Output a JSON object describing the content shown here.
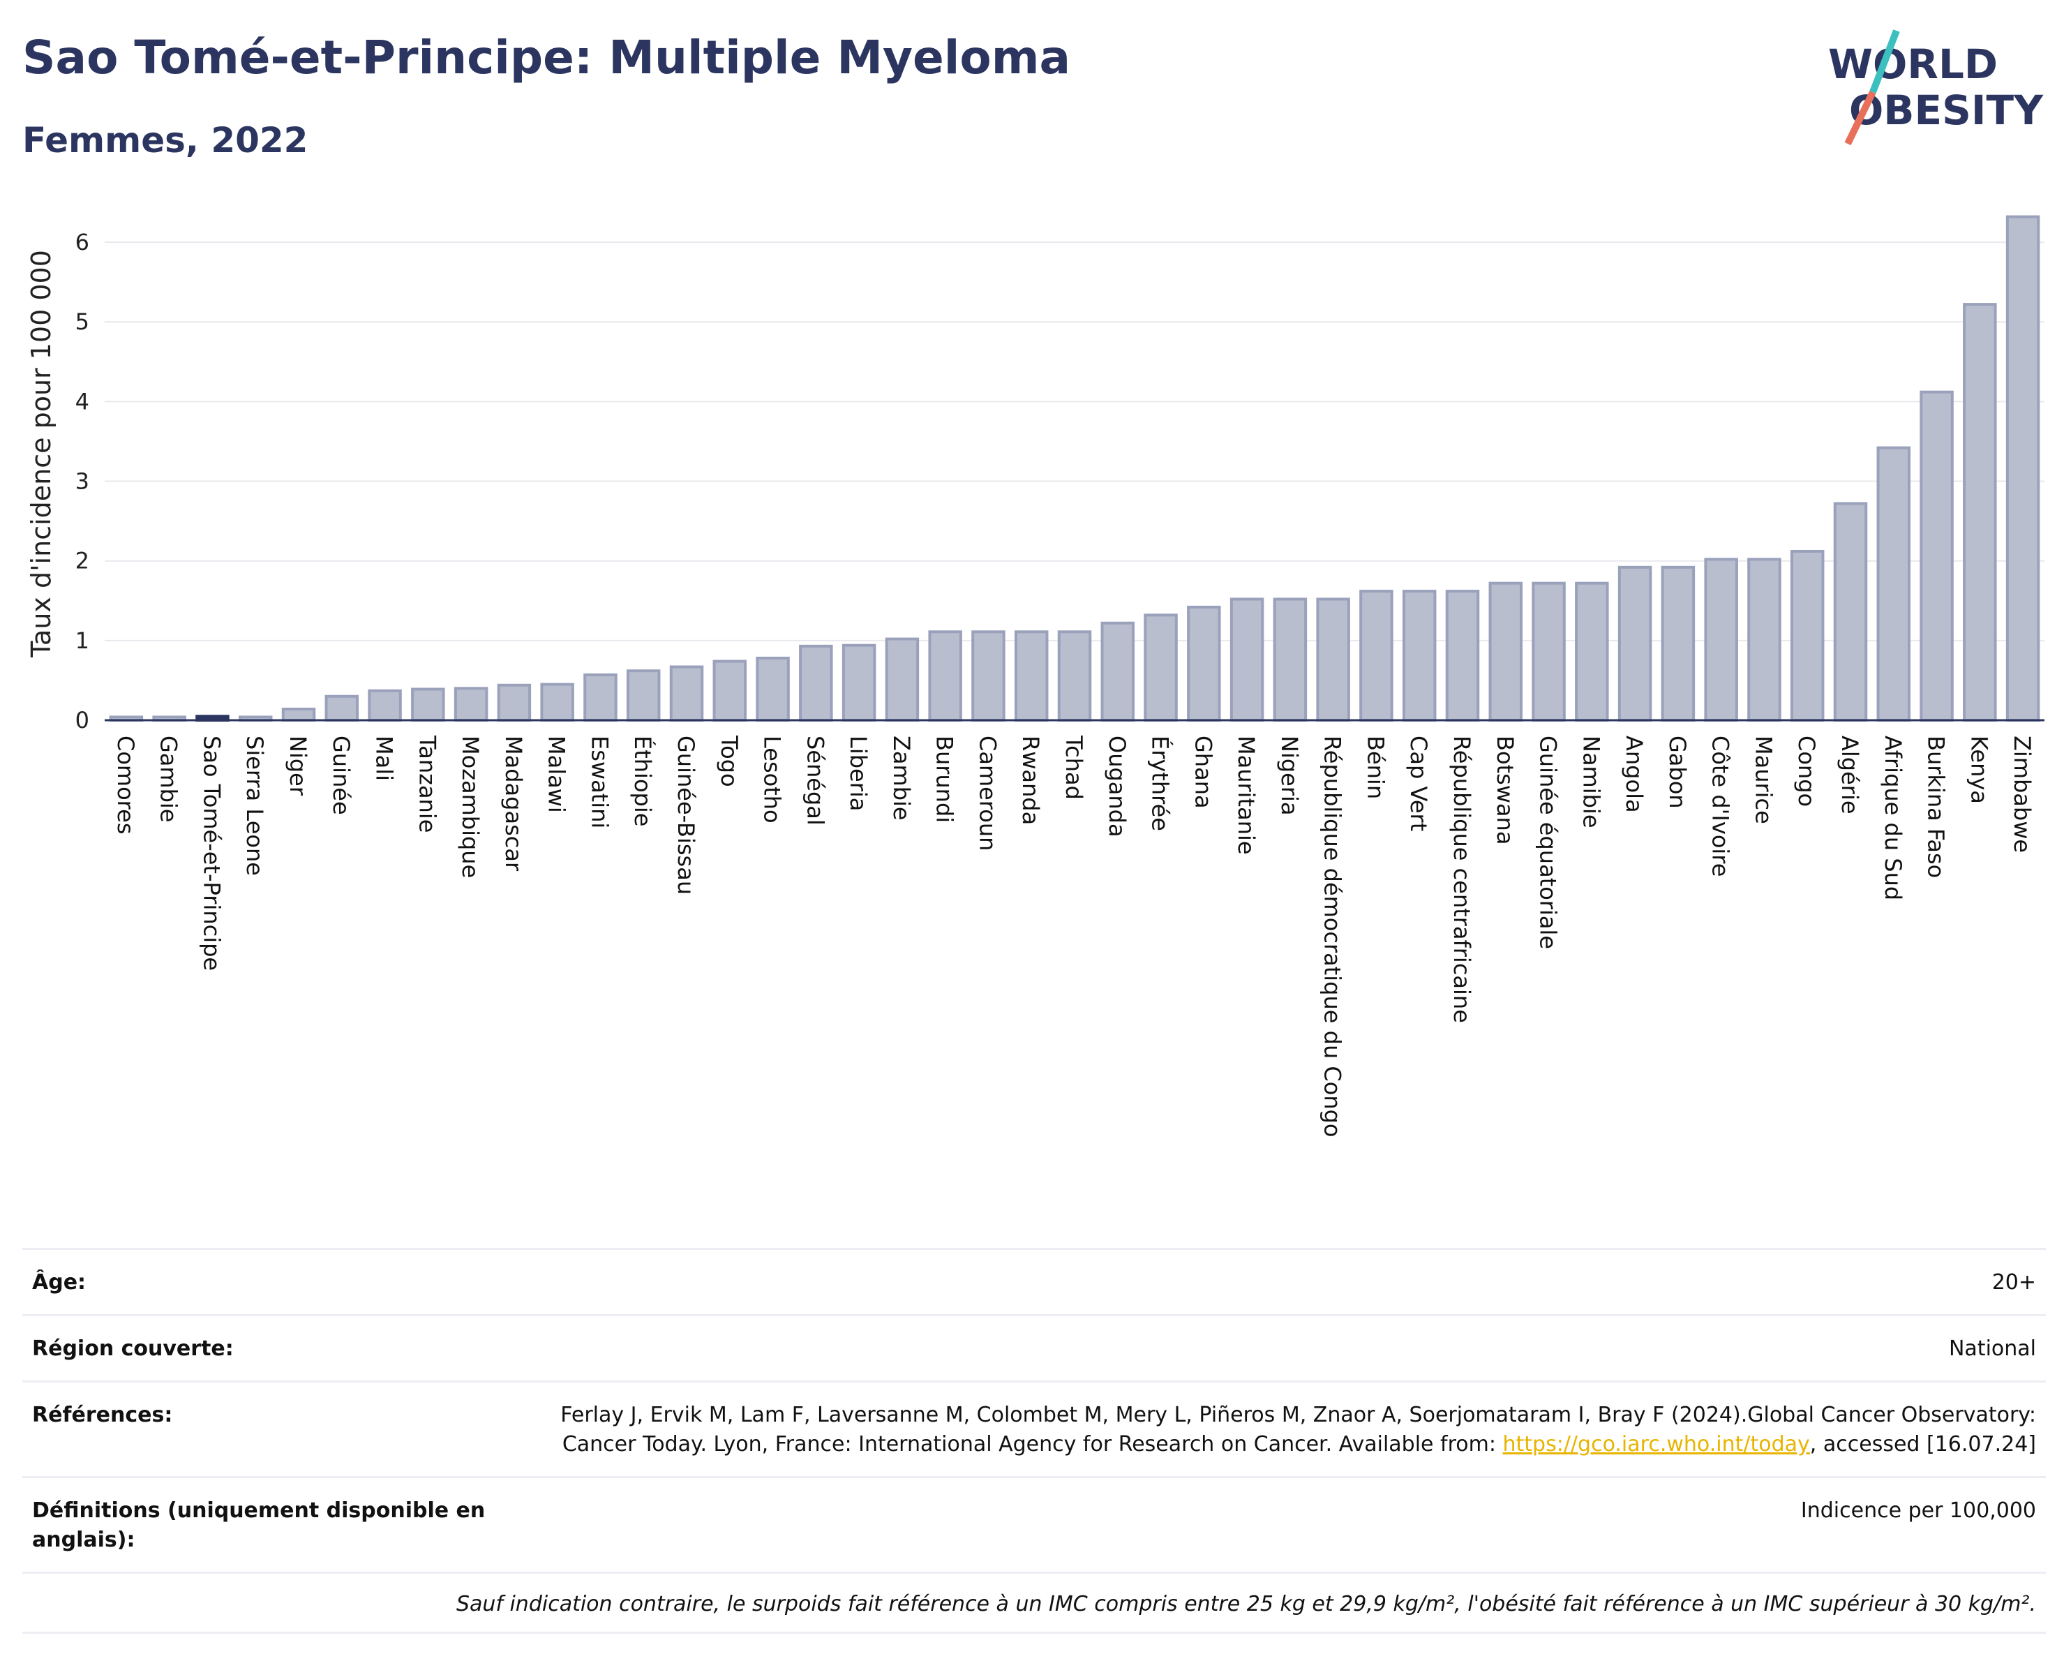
{
  "header": {
    "title": "Sao Tomé-et-Principe: Multiple Myeloma",
    "subtitle": "Femmes, 2022"
  },
  "logo": {
    "line1": "WORLD",
    "line2": "OBESITY",
    "icon": "world-obesity-logo"
  },
  "colors": {
    "bar": "#b9bece",
    "bar_stroke": "#9aa1bb",
    "highlight": "#2b3560",
    "title": "#2b3560",
    "grid": "#e8e8ee"
  },
  "chart_data": {
    "type": "bar",
    "ylabel": "Taux d'incidence pour 100 000",
    "ylim": [
      0,
      6.5
    ],
    "yticks": [
      0,
      1,
      2,
      3,
      4,
      5,
      6
    ],
    "grid": true,
    "highlight": "Sao Tomé-et-Principe",
    "categories": [
      "Comores",
      "Gambie",
      "Sao Tomé-et-Principe",
      "Sierra Leone",
      "Niger",
      "Guinée",
      "Mali",
      "Tanzanie",
      "Mozambique",
      "Madagascar",
      "Malawi",
      "Eswatini",
      "Éthiopie",
      "Guinée-Bissau",
      "Togo",
      "Lesotho",
      "Sénégal",
      "Liberia",
      "Zambie",
      "Burundi",
      "Cameroun",
      "Rwanda",
      "Tchad",
      "Ouganda",
      "Érythrée",
      "Ghana",
      "Mauritanie",
      "Nigeria",
      "République démocratique du Congo",
      "Bénin",
      "Cap Vert",
      "République centrafricaine",
      "Botswana",
      "Guinée équatoriale",
      "Namibie",
      "Angola",
      "Gabon",
      "Côte d'Ivoire",
      "Maurice",
      "Congo",
      "Algérie",
      "Afrique du Sud",
      "Burkina Faso",
      "Kenya",
      "Zimbabwe"
    ],
    "values": [
      0.04,
      0.04,
      0.05,
      0.04,
      0.14,
      0.3,
      0.37,
      0.39,
      0.4,
      0.44,
      0.45,
      0.57,
      0.62,
      0.67,
      0.74,
      0.78,
      0.93,
      0.94,
      1.02,
      1.11,
      1.11,
      1.11,
      1.11,
      1.22,
      1.32,
      1.42,
      1.52,
      1.52,
      1.52,
      1.62,
      1.62,
      1.62,
      1.72,
      1.72,
      1.72,
      1.92,
      1.92,
      2.02,
      2.02,
      2.12,
      2.72,
      3.42,
      4.12,
      5.22,
      6.32
    ]
  },
  "meta": {
    "age_label": "Âge:",
    "age_value": "20+",
    "region_label": "Région couverte:",
    "region_value": "National",
    "refs_label": "Références:",
    "refs_text": "Ferlay J, Ervik M, Lam F, Laversanne M, Colombet M, Mery L, Piñeros M, Znaor A, Soerjomataram I, Bray F (2024).Global Cancer Observatory: Cancer Today. Lyon, France: International Agency for Research on Cancer. Available from: ",
    "refs_link": "https://gco.iarc.who.int/today",
    "refs_tail": ", accessed [16.07.24]",
    "defs_label": "Définitions (uniquement disponible en anglais):",
    "defs_value": "Indicence per 100,000",
    "footnote": "Sauf indication contraire, le surpoids fait référence à un IMC compris entre 25 kg et 29,9 kg/m², l'obésité fait référence à un IMC supérieur à 30 kg/m²."
  }
}
